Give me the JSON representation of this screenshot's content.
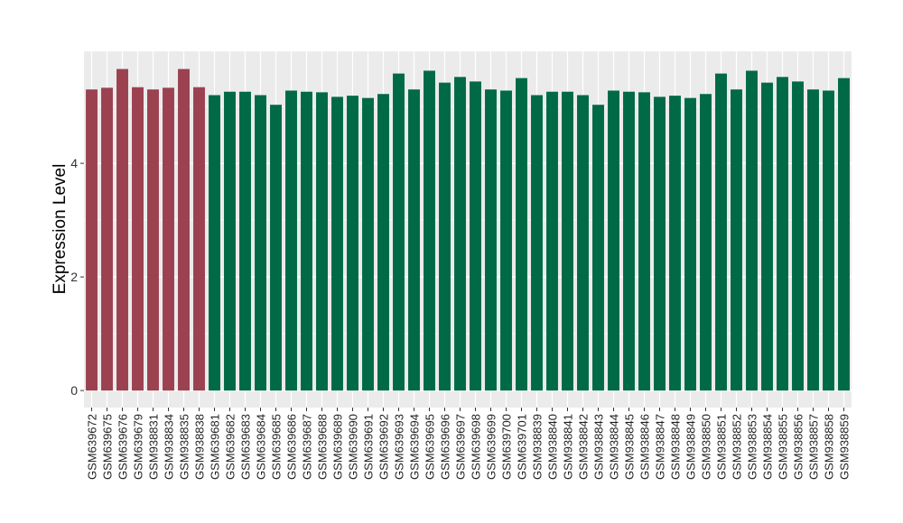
{
  "chart_data": {
    "type": "bar",
    "title": "",
    "xlabel": "",
    "ylabel": "Expression Level",
    "ylim": [
      -0.3,
      5.97
    ],
    "yticks": [
      0,
      2,
      4
    ],
    "grid": true,
    "legend": "none",
    "colors": {
      "group1": "#9b4150",
      "group2": "#006946",
      "panel": "#ebebeb",
      "gridline": "#ffffff"
    },
    "categories": [
      "GSM639672",
      "GSM639675",
      "GSM639676",
      "GSM639679",
      "GSM938831",
      "GSM938834",
      "GSM938835",
      "GSM938838",
      "GSM639681",
      "GSM639682",
      "GSM639683",
      "GSM639684",
      "GSM639685",
      "GSM639686",
      "GSM639687",
      "GSM639688",
      "GSM639689",
      "GSM639690",
      "GSM639691",
      "GSM639692",
      "GSM639693",
      "GSM639694",
      "GSM639695",
      "GSM639696",
      "GSM639697",
      "GSM639698",
      "GSM639699",
      "GSM639700",
      "GSM639701",
      "GSM938839",
      "GSM938840",
      "GSM938841",
      "GSM938842",
      "GSM938843",
      "GSM938844",
      "GSM938845",
      "GSM938846",
      "GSM938847",
      "GSM938848",
      "GSM938849",
      "GSM938850",
      "GSM938851",
      "GSM938852",
      "GSM938853",
      "GSM938854",
      "GSM938855",
      "GSM938856",
      "GSM938857",
      "GSM938858",
      "GSM938859"
    ],
    "values": [
      5.3,
      5.33,
      5.66,
      5.34,
      5.3,
      5.33,
      5.66,
      5.34,
      5.2,
      5.26,
      5.26,
      5.2,
      5.03,
      5.28,
      5.26,
      5.25,
      5.17,
      5.19,
      5.15,
      5.22,
      5.58,
      5.3,
      5.63,
      5.42,
      5.52,
      5.44,
      5.3,
      5.28,
      5.5,
      5.2,
      5.26,
      5.26,
      5.2,
      5.03,
      5.28,
      5.26,
      5.25,
      5.17,
      5.19,
      5.15,
      5.22,
      5.58,
      5.3,
      5.63,
      5.42,
      5.52,
      5.44,
      5.3,
      5.28,
      5.5
    ],
    "groups": [
      "group1",
      "group1",
      "group1",
      "group1",
      "group1",
      "group1",
      "group1",
      "group1",
      "group2",
      "group2",
      "group2",
      "group2",
      "group2",
      "group2",
      "group2",
      "group2",
      "group2",
      "group2",
      "group2",
      "group2",
      "group2",
      "group2",
      "group2",
      "group2",
      "group2",
      "group2",
      "group2",
      "group2",
      "group2",
      "group2",
      "group2",
      "group2",
      "group2",
      "group2",
      "group2",
      "group2",
      "group2",
      "group2",
      "group2",
      "group2",
      "group2",
      "group2",
      "group2",
      "group2",
      "group2",
      "group2",
      "group2",
      "group2",
      "group2",
      "group2"
    ]
  }
}
